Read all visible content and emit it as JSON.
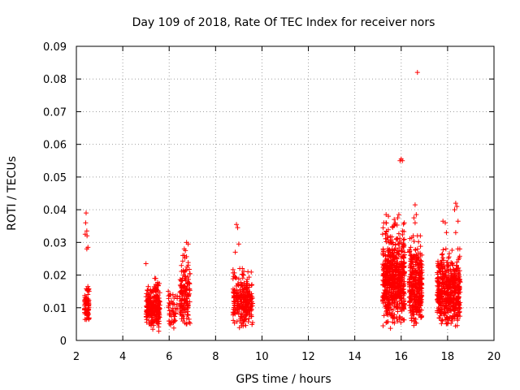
{
  "chart_data": {
    "type": "scatter",
    "title": "Day 109 of 2018, Rate Of TEC Index for receiver nors",
    "xlabel": "GPS time / hours",
    "ylabel": "ROTI / TECUs",
    "xlim": [
      2,
      20
    ],
    "ylim": [
      0,
      0.09
    ],
    "x_ticks": [
      2,
      4,
      6,
      8,
      10,
      12,
      14,
      16,
      18,
      20
    ],
    "y_ticks": [
      0,
      0.01,
      0.02,
      0.03,
      0.04,
      0.05,
      0.06,
      0.07,
      0.08,
      0.09
    ],
    "x_tick_labels": [
      "2",
      "4",
      "6",
      "8",
      "10",
      "12",
      "14",
      "16",
      "18",
      "20"
    ],
    "y_tick_labels": [
      "0",
      "0.01",
      "0.02",
      "0.03",
      "0.04",
      "0.05",
      "0.06",
      "0.07",
      "0.08",
      "0.09"
    ],
    "grid": true,
    "marker": "+",
    "color": "#ff0000",
    "clusters": [
      {
        "x_start": 2.35,
        "x_end": 2.55,
        "y_min": 0.004,
        "y_max": 0.018,
        "count": 70
      },
      {
        "x_start": 5.0,
        "x_end": 5.6,
        "y_min": 0.002,
        "y_max": 0.019,
        "count": 260
      },
      {
        "x_start": 5.95,
        "x_end": 6.35,
        "y_min": 0.003,
        "y_max": 0.015,
        "count": 50
      },
      {
        "x_start": 6.45,
        "x_end": 6.9,
        "y_min": 0.003,
        "y_max": 0.026,
        "count": 150
      },
      {
        "x_start": 8.75,
        "x_end": 9.6,
        "y_min": 0.003,
        "y_max": 0.022,
        "count": 260
      },
      {
        "x_start": 15.2,
        "x_end": 16.15,
        "y_min": 0.003,
        "y_max": 0.036,
        "count": 620
      },
      {
        "x_start": 16.35,
        "x_end": 16.9,
        "y_min": 0.003,
        "y_max": 0.032,
        "count": 330
      },
      {
        "x_start": 17.55,
        "x_end": 18.55,
        "y_min": 0.003,
        "y_max": 0.028,
        "count": 520
      }
    ],
    "outliers": [
      {
        "x": 2.42,
        "y": 0.039
      },
      {
        "x": 2.4,
        "y": 0.036
      },
      {
        "x": 2.45,
        "y": 0.0335
      },
      {
        "x": 2.38,
        "y": 0.0325
      },
      {
        "x": 2.46,
        "y": 0.032
      },
      {
        "x": 2.5,
        "y": 0.0285
      },
      {
        "x": 2.45,
        "y": 0.028
      },
      {
        "x": 5.0,
        "y": 0.0235
      },
      {
        "x": 6.75,
        "y": 0.03
      },
      {
        "x": 6.82,
        "y": 0.0295
      },
      {
        "x": 6.65,
        "y": 0.028
      },
      {
        "x": 6.7,
        "y": 0.0275
      },
      {
        "x": 8.9,
        "y": 0.0355
      },
      {
        "x": 8.95,
        "y": 0.0345
      },
      {
        "x": 9.0,
        "y": 0.0295
      },
      {
        "x": 8.85,
        "y": 0.027
      },
      {
        "x": 15.35,
        "y": 0.0385
      },
      {
        "x": 15.45,
        "y": 0.038
      },
      {
        "x": 15.9,
        "y": 0.0385
      },
      {
        "x": 15.85,
        "y": 0.0375
      },
      {
        "x": 15.7,
        "y": 0.037
      },
      {
        "x": 16.0,
        "y": 0.0555
      },
      {
        "x": 16.05,
        "y": 0.055
      },
      {
        "x": 15.95,
        "y": 0.055
      },
      {
        "x": 16.7,
        "y": 0.082
      },
      {
        "x": 16.6,
        "y": 0.0415
      },
      {
        "x": 16.65,
        "y": 0.0385
      },
      {
        "x": 16.55,
        "y": 0.0375
      },
      {
        "x": 16.6,
        "y": 0.036
      },
      {
        "x": 17.8,
        "y": 0.0365
      },
      {
        "x": 17.9,
        "y": 0.036
      },
      {
        "x": 17.95,
        "y": 0.033
      },
      {
        "x": 18.35,
        "y": 0.042
      },
      {
        "x": 18.4,
        "y": 0.041
      },
      {
        "x": 18.3,
        "y": 0.04
      },
      {
        "x": 18.45,
        "y": 0.0365
      },
      {
        "x": 18.35,
        "y": 0.033
      }
    ]
  }
}
